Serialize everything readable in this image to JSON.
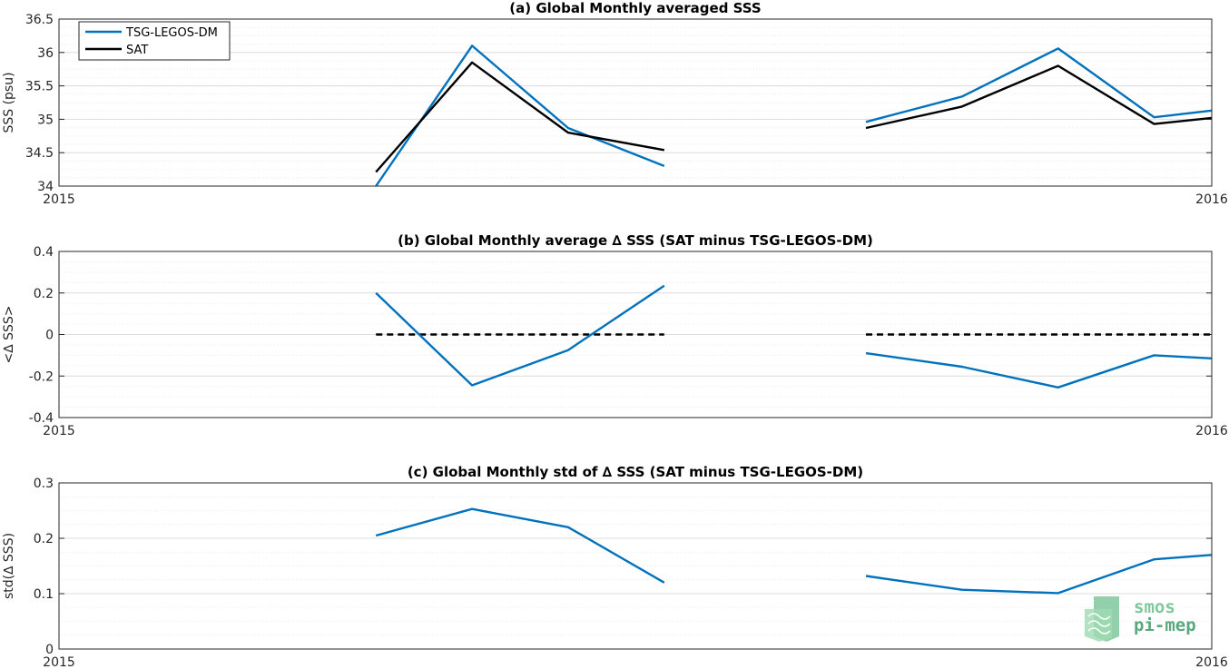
{
  "chart_data": [
    {
      "type": "line",
      "title": "(a) Global Monthly averaged SSS",
      "ylabel": "SSS (psu)",
      "xlabel": "",
      "xlim": [
        0,
        12
      ],
      "ylim": [
        34,
        36.5
      ],
      "yticks": [
        34,
        34.5,
        35,
        35.5,
        36,
        36.5
      ],
      "ytick_labels": [
        "34",
        "34.5",
        "35",
        "35.5",
        "36",
        "36.5"
      ],
      "xtick_labels": [
        "2015",
        "2016"
      ],
      "grid": true,
      "legend_position": "top-left",
      "legend": [
        "TSG-LEGOS-DM",
        "SAT"
      ],
      "series": [
        {
          "name": "TSG-LEGOS-DM",
          "color": "#0072BD",
          "segments": [
            {
              "x": [
                3.3,
                4.3,
                5.3,
                6.3
              ],
              "y": [
                34.0,
                36.1,
                34.87,
                34.3
              ]
            },
            {
              "x": [
                8.4,
                9.4,
                10.4,
                11.4,
                12.0
              ],
              "y": [
                34.96,
                35.34,
                36.06,
                35.03,
                35.13
              ]
            }
          ]
        },
        {
          "name": "SAT",
          "color": "#000000",
          "segments": [
            {
              "x": [
                3.3,
                4.3,
                5.3,
                6.3
              ],
              "y": [
                34.21,
                35.85,
                34.8,
                34.54
              ]
            },
            {
              "x": [
                8.4,
                9.4,
                10.4,
                11.4,
                12.0
              ],
              "y": [
                34.87,
                35.19,
                35.8,
                34.93,
                35.02
              ]
            }
          ]
        }
      ]
    },
    {
      "type": "line",
      "title": "(b) Global Monthly average ∆ SSS (SAT minus TSG-LEGOS-DM)",
      "ylabel": "<∆ SSS>",
      "xlabel": "",
      "xlim": [
        0,
        12
      ],
      "ylim": [
        -0.4,
        0.4
      ],
      "yticks": [
        -0.4,
        -0.2,
        0,
        0.2,
        0.4
      ],
      "ytick_labels": [
        "-0.4",
        "-0.2",
        "0",
        "0.2",
        "0.4"
      ],
      "xtick_labels": [
        "2015",
        "2016"
      ],
      "grid": true,
      "series": [
        {
          "color": "#0072BD",
          "segments": [
            {
              "x": [
                3.3,
                4.3,
                5.3,
                6.3
              ],
              "y": [
                0.2,
                -0.245,
                -0.075,
                0.235
              ]
            },
            {
              "x": [
                8.4,
                9.4,
                10.4,
                11.4,
                12.0
              ],
              "y": [
                -0.09,
                -0.155,
                -0.255,
                -0.1,
                -0.115
              ]
            }
          ]
        }
      ],
      "reference_lines": [
        {
          "style": "dashed",
          "color": "#000000",
          "y": 0,
          "x_ranges": [
            [
              3.3,
              6.3
            ],
            [
              8.4,
              12.0
            ]
          ]
        }
      ]
    },
    {
      "type": "line",
      "title": "(c) Global Monthly std of ∆ SSS (SAT minus TSG-LEGOS-DM)",
      "ylabel": "std(∆ SSS)",
      "xlabel": "",
      "xlim": [
        0,
        12
      ],
      "ylim": [
        0,
        0.3
      ],
      "yticks": [
        0,
        0.1,
        0.2,
        0.3
      ],
      "ytick_labels": [
        "0",
        "0.1",
        "0.2",
        "0.3"
      ],
      "xtick_labels": [
        "2015",
        "2016"
      ],
      "grid": true,
      "series": [
        {
          "color": "#0072BD",
          "segments": [
            {
              "x": [
                3.3,
                4.3,
                5.3,
                6.3
              ],
              "y": [
                0.205,
                0.253,
                0.22,
                0.12
              ]
            },
            {
              "x": [
                8.4,
                9.4,
                10.4,
                11.4,
                12.0
              ],
              "y": [
                0.132,
                0.107,
                0.101,
                0.162,
                0.17
              ]
            }
          ]
        }
      ]
    }
  ],
  "logo": {
    "line1": "smos",
    "line2": "pi-mep"
  }
}
